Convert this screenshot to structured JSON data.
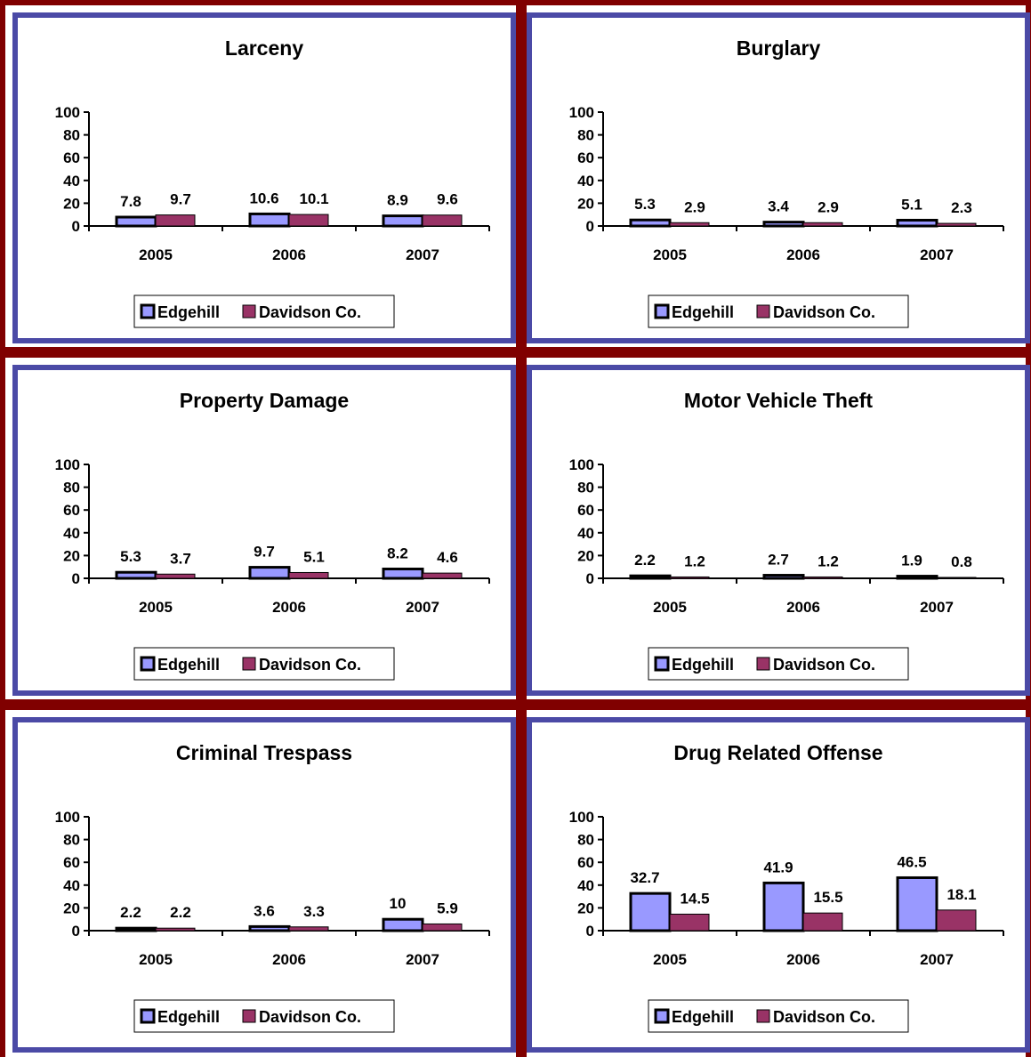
{
  "colors": {
    "edgehill": "#9999ff",
    "davidson": "#993366",
    "panel_border": "#4b4aa6",
    "divider": "#800000"
  },
  "chart_data": [
    {
      "type": "bar",
      "title": "Larceny",
      "categories": [
        "2005",
        "2006",
        "2007"
      ],
      "series": [
        {
          "name": "Edgehill",
          "values": [
            7.8,
            10.6,
            8.9
          ]
        },
        {
          "name": "Davidson Co.",
          "values": [
            9.7,
            10.1,
            9.6
          ]
        }
      ],
      "ylim": [
        0,
        100
      ],
      "yticks": [
        0,
        20,
        40,
        60,
        80,
        100
      ],
      "legend": "bottom"
    },
    {
      "type": "bar",
      "title": "Burglary",
      "categories": [
        "2005",
        "2006",
        "2007"
      ],
      "series": [
        {
          "name": "Edgehill",
          "values": [
            5.3,
            3.4,
            5.1
          ]
        },
        {
          "name": "Davidson Co.",
          "values": [
            2.9,
            2.9,
            2.3
          ]
        }
      ],
      "ylim": [
        0,
        100
      ],
      "yticks": [
        0,
        20,
        40,
        60,
        80,
        100
      ],
      "legend": "bottom"
    },
    {
      "type": "bar",
      "title": "Property Damage",
      "categories": [
        "2005",
        "2006",
        "2007"
      ],
      "series": [
        {
          "name": "Edgehill",
          "values": [
            5.3,
            9.7,
            8.2
          ]
        },
        {
          "name": "Davidson Co.",
          "values": [
            3.7,
            5.1,
            4.6
          ]
        }
      ],
      "ylim": [
        0,
        100
      ],
      "yticks": [
        0,
        20,
        40,
        60,
        80,
        100
      ],
      "legend": "bottom"
    },
    {
      "type": "bar",
      "title": "Motor Vehicle Theft",
      "categories": [
        "2005",
        "2006",
        "2007"
      ],
      "series": [
        {
          "name": "Edgehill",
          "values": [
            2.2,
            2.7,
            1.9
          ]
        },
        {
          "name": "Davidson Co.",
          "values": [
            1.2,
            1.2,
            0.8
          ]
        }
      ],
      "ylim": [
        0,
        100
      ],
      "yticks": [
        0,
        20,
        40,
        60,
        80,
        100
      ],
      "legend": "bottom"
    },
    {
      "type": "bar",
      "title": "Criminal Trespass",
      "categories": [
        "2005",
        "2006",
        "2007"
      ],
      "series": [
        {
          "name": "Edgehill",
          "values": [
            2.2,
            3.6,
            10
          ]
        },
        {
          "name": "Davidson Co.",
          "values": [
            2.2,
            3.3,
            5.9
          ]
        }
      ],
      "ylim": [
        0,
        100
      ],
      "yticks": [
        0,
        20,
        40,
        60,
        80,
        100
      ],
      "legend": "bottom"
    },
    {
      "type": "bar",
      "title": "Drug Related Offense",
      "categories": [
        "2005",
        "2006",
        "2007"
      ],
      "series": [
        {
          "name": "Edgehill",
          "values": [
            32.7,
            41.9,
            46.5
          ]
        },
        {
          "name": "Davidson Co.",
          "values": [
            14.5,
            15.5,
            18.1
          ]
        }
      ],
      "ylim": [
        0,
        100
      ],
      "yticks": [
        0,
        20,
        40,
        60,
        80,
        100
      ],
      "legend": "bottom"
    }
  ]
}
